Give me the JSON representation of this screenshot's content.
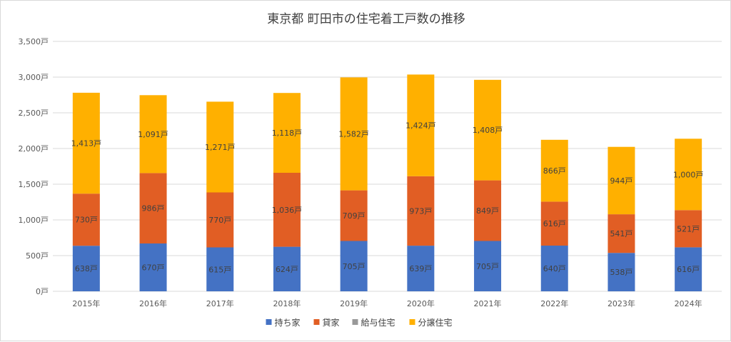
{
  "chart_data": {
    "type": "bar",
    "stacked": true,
    "title": "東京都 町田市の住宅着工戸数の推移",
    "categories": [
      "2015年",
      "2016年",
      "2017年",
      "2018年",
      "2019年",
      "2020年",
      "2021年",
      "2022年",
      "2023年",
      "2024年"
    ],
    "ylim": [
      0,
      3500
    ],
    "yticks": [
      "0戸",
      "500戸",
      "1,000戸",
      "1,500戸",
      "2,000戸",
      "2,500戸",
      "3,000戸",
      "3,500戸"
    ],
    "grid": true,
    "legend_position": "bottom",
    "unit_suffix": "戸",
    "series": [
      {
        "name": "持ち家",
        "color": "#4472c4",
        "values": [
          638,
          670,
          615,
          624,
          705,
          639,
          705,
          640,
          538,
          616
        ]
      },
      {
        "name": "貸家",
        "color": "#e15e24",
        "values": [
          730,
          986,
          770,
          1036,
          709,
          973,
          849,
          616,
          541,
          521
        ]
      },
      {
        "name": "給与住宅",
        "color": "#999999",
        "values": [
          0,
          0,
          0,
          0,
          0,
          0,
          0,
          0,
          0,
          0
        ]
      },
      {
        "name": "分譲住宅",
        "color": "#ffb000",
        "values": [
          1413,
          1091,
          1271,
          1118,
          1582,
          1424,
          1408,
          866,
          944,
          1000
        ]
      }
    ]
  }
}
